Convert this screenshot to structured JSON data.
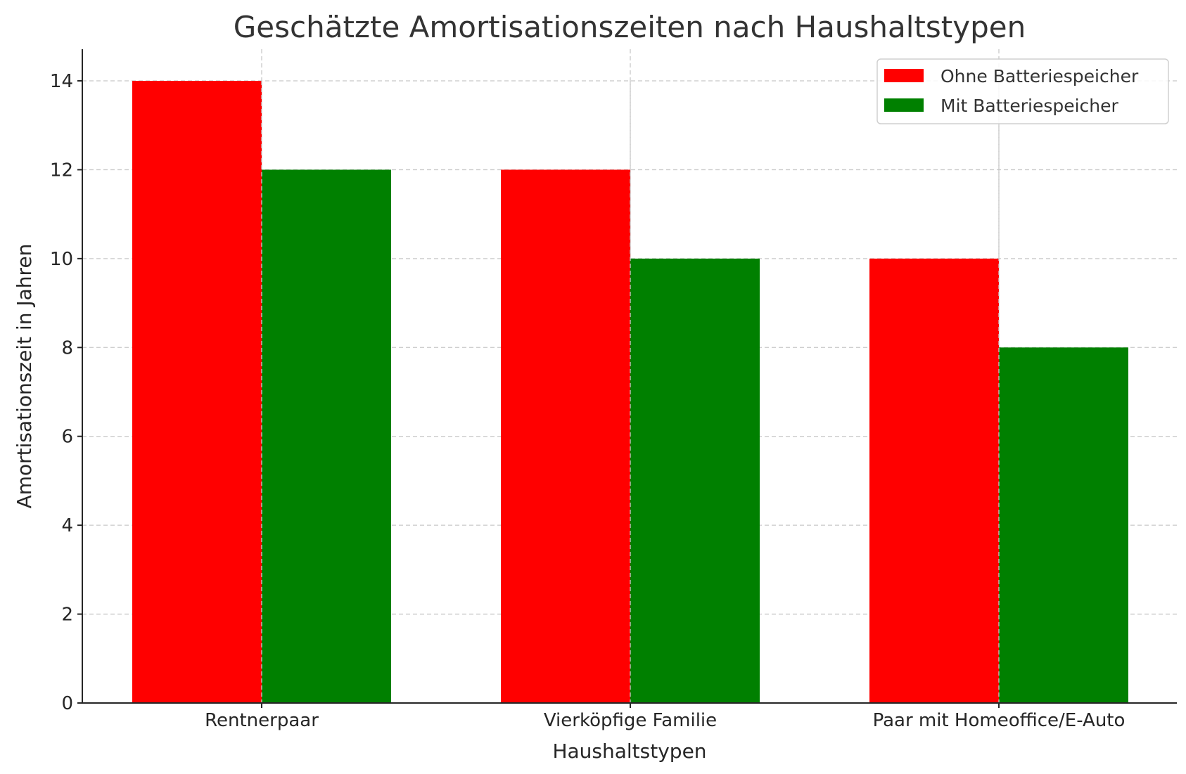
{
  "chart_data": {
    "type": "bar",
    "title": "Geschätzte Amortisationszeiten nach Haushaltstypen",
    "xlabel": "Haushaltstypen",
    "ylabel": "Amortisationszeit in Jahren",
    "categories": [
      "Rentnerpaar",
      "Vierköpfige Familie",
      "Paar mit Homeoffice/E-Auto"
    ],
    "series": [
      {
        "name": "Ohne Batteriespeicher",
        "values": [
          14,
          12,
          10
        ],
        "color": "#ff0000"
      },
      {
        "name": "Mit Batteriespeicher",
        "values": [
          12,
          10,
          8
        ],
        "color": "#008000"
      }
    ],
    "ylim": [
      0,
      14.7
    ],
    "yticks": [
      0,
      2,
      4,
      6,
      8,
      10,
      12,
      14
    ],
    "grid": true,
    "legend_position": "top-right"
  }
}
